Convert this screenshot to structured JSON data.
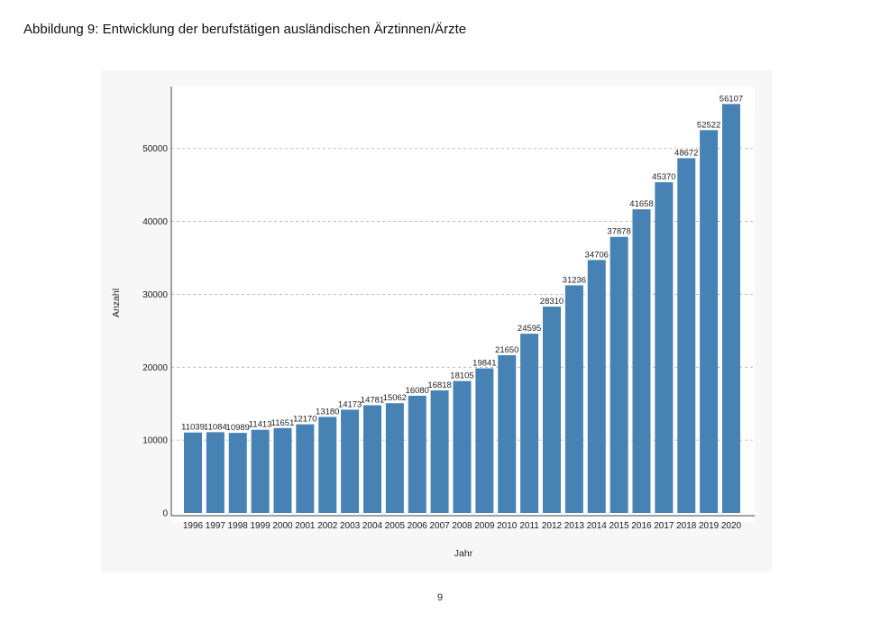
{
  "page": {
    "title": "Abbildung 9: Entwicklung der berufstätigen ausländischen Ärztinnen/Ärzte",
    "page_number": "9"
  },
  "chart_data": {
    "type": "bar",
    "title": "",
    "xlabel": "Jahr",
    "ylabel": "Anzahl",
    "categories": [
      "1996",
      "1997",
      "1998",
      "1999",
      "2000",
      "2001",
      "2002",
      "2003",
      "2004",
      "2005",
      "2006",
      "2007",
      "2008",
      "2009",
      "2010",
      "2011",
      "2012",
      "2013",
      "2014",
      "2015",
      "2016",
      "2017",
      "2018",
      "2019",
      "2020"
    ],
    "values": [
      11039,
      11084,
      10989,
      11413,
      11651,
      12170,
      13180,
      14173,
      14781,
      15062,
      16080,
      16818,
      18105,
      19841,
      21650,
      24595,
      28310,
      31236,
      34706,
      37878,
      41658,
      45370,
      48672,
      52522,
      56107
    ],
    "yticks": [
      0,
      10000,
      20000,
      30000,
      40000,
      50000
    ],
    "ylim": [
      0,
      58500
    ],
    "grid": "horizontal dashed",
    "colors": {
      "bar": "#4682b4",
      "panel_background": "#f7f7f7",
      "plot_background": "#ffffff",
      "grid": "#b0b0b0"
    }
  }
}
